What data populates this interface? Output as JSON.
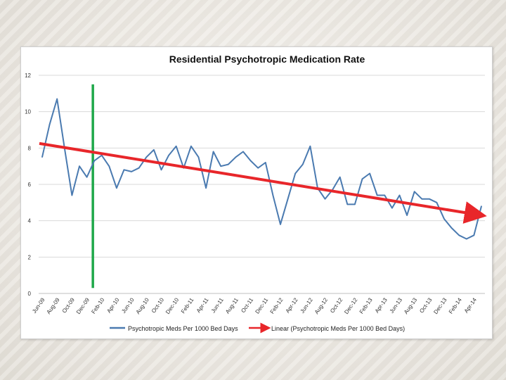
{
  "slide": {
    "background_color": "#ece9e3"
  },
  "chart_data": {
    "type": "line",
    "title": "Residential Psychotropic Medication Rate",
    "xlabel": "",
    "ylabel": "",
    "ylim": [
      0,
      12
    ],
    "yticks": [
      0,
      2,
      4,
      6,
      8,
      10,
      12
    ],
    "grid": true,
    "legend_position": "bottom",
    "x": [
      "Jun-09",
      "Jul-09",
      "Aug-09",
      "Sep-09",
      "Oct-09",
      "Nov-09",
      "Dec-09",
      "Jan-10",
      "Feb-10",
      "Mar-10",
      "Apr-10",
      "May-10",
      "Jun-10",
      "Jul-10",
      "Aug-10",
      "Sep-10",
      "Oct-10",
      "Nov-10",
      "Dec-10",
      "Jan-11",
      "Feb-11",
      "Mar-11",
      "Apr-11",
      "May-11",
      "Jun-11",
      "Jul-11",
      "Aug-11",
      "Sep-11",
      "Oct-11",
      "Nov-11",
      "Dec-11",
      "Jan-12",
      "Feb-12",
      "Mar-12",
      "Apr-12",
      "May-12",
      "Jun-12",
      "Jul-12",
      "Aug-12",
      "Sep-12",
      "Oct-12",
      "Nov-12",
      "Dec-12",
      "Jan-13",
      "Feb-13",
      "Mar-13",
      "Apr-13",
      "May-13",
      "Jun-13",
      "Jul-13",
      "Aug-13",
      "Sep-13",
      "Oct-13",
      "Nov-13",
      "Dec-13",
      "Jan-14",
      "Feb-14",
      "Mar-14",
      "Apr-14",
      "May-14"
    ],
    "x_tick_labels": [
      "Jun-09",
      "Aug-09",
      "Oct-09",
      "Dec-09",
      "Feb-10",
      "Apr-10",
      "Jun-10",
      "Aug-10",
      "Oct-10",
      "Dec-10",
      "Feb-11",
      "Apr-11",
      "Jun-11",
      "Aug-11",
      "Oct-11",
      "Dec-11",
      "Feb-12",
      "Apr-12",
      "Jun-12",
      "Aug-12",
      "Oct-12",
      "Dec-12",
      "Feb-13",
      "Apr-13",
      "Jun-13",
      "Aug-13",
      "Oct-13",
      "Dec-13",
      "Feb-14",
      "Apr-14"
    ],
    "series": [
      {
        "name": "Psychotropic Meds Per 1000 Bed Days",
        "color": "#4a7ab0",
        "values": [
          7.5,
          9.3,
          10.7,
          8.0,
          5.4,
          7.0,
          6.4,
          7.3,
          7.6,
          7.0,
          5.8,
          6.8,
          6.7,
          6.9,
          7.5,
          7.9,
          6.8,
          7.6,
          8.1,
          6.9,
          8.1,
          7.5,
          5.8,
          7.8,
          7.0,
          7.1,
          7.5,
          7.8,
          7.3,
          6.9,
          7.2,
          5.4,
          3.8,
          5.2,
          6.6,
          7.1,
          8.1,
          5.8,
          5.2,
          5.7,
          6.4,
          4.9,
          4.9,
          6.3,
          6.6,
          5.4,
          5.4,
          4.7,
          5.4,
          4.3,
          5.6,
          5.2,
          5.2,
          5.0,
          4.1,
          3.6,
          3.2,
          3.0,
          3.2,
          4.8
        ]
      }
    ],
    "trendline": {
      "name": "Linear (Psychotropic Meds Per 1000 Bed Days)",
      "color": "#e8262a",
      "start": 8.25,
      "end": 4.35
    },
    "annotations": [
      {
        "type": "vertical_marker",
        "color": "#1fa84a",
        "x": "Jan-10",
        "from": 0.3,
        "to": 11.5
      }
    ]
  }
}
